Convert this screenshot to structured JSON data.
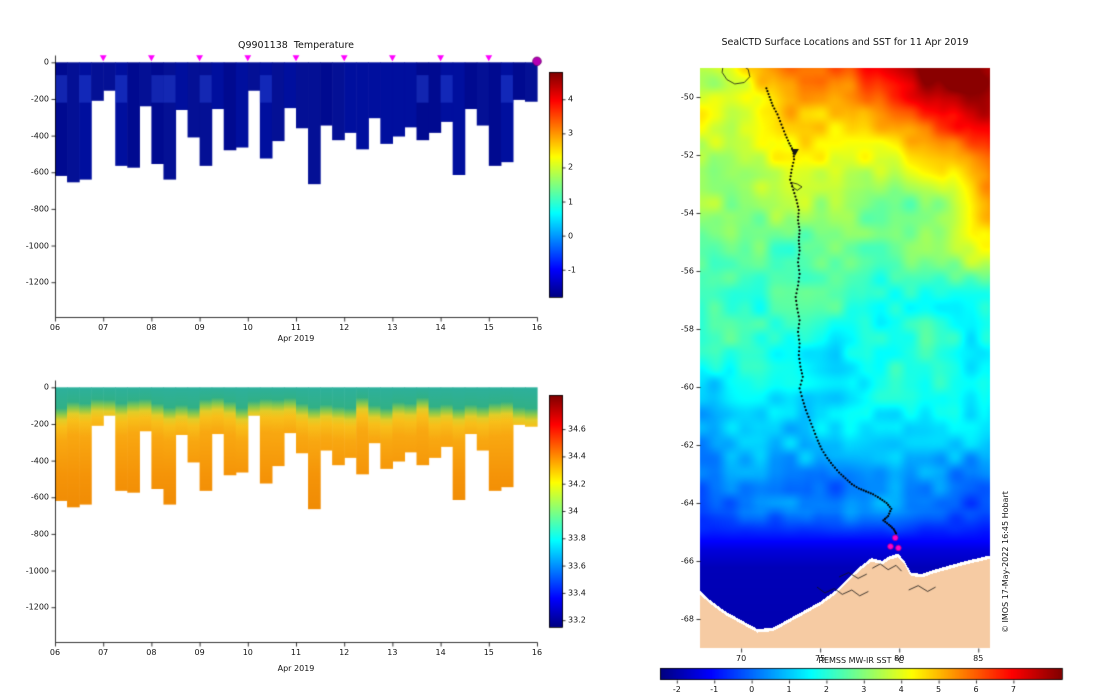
{
  "chart_data": [
    {
      "id": "temperature_profile",
      "type": "heatmap",
      "title": "Q9901138  Temperature",
      "xlabel": "Apr 2019",
      "x_tick_labels": [
        "06",
        "07",
        "08",
        "09",
        "10",
        "11",
        "12",
        "13",
        "14",
        "15",
        "16"
      ],
      "x_range_days": [
        6,
        16
      ],
      "y_tick_values": [
        0,
        -200,
        -400,
        -600,
        -800,
        -1000,
        -1200
      ],
      "y_range_m": [
        -1390,
        40
      ],
      "column_start_day": 6,
      "column_width_days": 0.25,
      "column_max_depths_m": [
        -620,
        -655,
        -640,
        -210,
        -155,
        -565,
        -575,
        -240,
        -555,
        -640,
        -260,
        -410,
        -565,
        -255,
        -480,
        -465,
        -155,
        -525,
        -430,
        -250,
        -360,
        -665,
        -345,
        -425,
        -385,
        -475,
        -305,
        -445,
        -405,
        -355,
        -425,
        -385,
        -325,
        -615,
        -255,
        -345,
        -565,
        -545,
        -205,
        -215
      ],
      "body_temperature_c": -0.9,
      "body_colors": [
        "#000a90",
        "#000f9e",
        "#041095"
      ],
      "surface_patch_color": "rgba(40,70,215,0.45)",
      "surface_marker_days": [
        7,
        8,
        9,
        10,
        11,
        12,
        13,
        14,
        15
      ],
      "surface_marker_color": "#ff00ff",
      "end_marker": {
        "day": 16,
        "color": "#b400b4"
      },
      "colorbar": {
        "ticks": [
          4,
          3,
          2,
          1,
          0,
          -1
        ],
        "vmin": -1.8,
        "vmax": 4.8,
        "colormap": "jet"
      }
    },
    {
      "id": "salinity_profile",
      "type": "heatmap",
      "title": "",
      "xlabel": "Apr 2019",
      "x_tick_labels": [
        "06",
        "07",
        "08",
        "09",
        "10",
        "11",
        "12",
        "13",
        "14",
        "15",
        "16"
      ],
      "x_range_days": [
        6,
        16
      ],
      "y_tick_values": [
        0,
        -200,
        -400,
        -600,
        -800,
        -1000,
        -1200
      ],
      "y_range_m": [
        -1390,
        40
      ],
      "surface_layer_approx": 34.0,
      "deep_layer_approx": 34.5,
      "gradient_stops_m": [
        [
          0,
          "#2db19d"
        ],
        [
          85,
          "#31b087"
        ],
        [
          120,
          "#8bc94b"
        ],
        [
          150,
          "#e2cd28"
        ],
        [
          185,
          "#f8c01a"
        ],
        [
          265,
          "#f9a811"
        ],
        [
          480,
          "#f59408"
        ],
        [
          700,
          "#ef8a04"
        ]
      ],
      "colorbar": {
        "ticks": [
          34.6,
          34.4,
          34.2,
          34,
          33.8,
          33.6,
          33.4,
          33.2
        ],
        "vmin": 33.15,
        "vmax": 34.85,
        "colormap": "jet"
      }
    },
    {
      "id": "sst_map",
      "type": "heatmap",
      "title": "SealCTD Surface Locations and SST for 11 Apr 2019",
      "credit": "© IMOS 17-May-2022 16:45 Hobart",
      "x_tick_values": [
        70,
        75,
        80,
        85
      ],
      "y_tick_values": [
        -50,
        -52,
        -54,
        -56,
        -58,
        -60,
        -62,
        -64,
        -66,
        -68
      ],
      "lon_range": [
        67.4,
        85.75
      ],
      "lat_range": [
        -69,
        -49
      ],
      "land_color": "#f6cba3",
      "track_color": "#000000",
      "colorbar": {
        "label": "REMSS MW-IR SST °C",
        "ticks": [
          -2,
          -1,
          0,
          1,
          2,
          3,
          4,
          5,
          6,
          7
        ],
        "vmin": -2.45,
        "vmax": 8.3,
        "colormap": "jet"
      },
      "sst_lat_profile": [
        [
          -69,
          -1.85
        ],
        [
          -66.2,
          -1.75
        ],
        [
          -65.6,
          -1.4
        ],
        [
          -64.9,
          -0.6
        ],
        [
          -64.3,
          0.05
        ],
        [
          -63.5,
          0.3
        ],
        [
          -62.5,
          0.55
        ],
        [
          -61.5,
          0.8
        ],
        [
          -60.5,
          1.05
        ],
        [
          -59.5,
          1.3
        ],
        [
          -58.5,
          1.6
        ],
        [
          -57.5,
          1.9
        ],
        [
          -56.5,
          2.2
        ],
        [
          -55,
          2.6
        ],
        [
          -53.5,
          3.0
        ],
        [
          -52.5,
          3.3
        ],
        [
          -51.5,
          3.8
        ],
        [
          -50.5,
          4.2
        ],
        [
          -49.6,
          4.6
        ],
        [
          -49,
          5.0
        ]
      ],
      "sst_warm_features": [
        {
          "lon": 83.5,
          "lat": -49.2,
          "slon": 4.5,
          "slat": 2.0,
          "amp": 3.0
        },
        {
          "lon": 86.5,
          "lat": -54.0,
          "slon": 2.4,
          "slat": 1.6,
          "amp": 1.7
        },
        {
          "lon": 85.9,
          "lat": -51.8,
          "slon": 2.2,
          "slat": 1.4,
          "amp": 1.4
        },
        {
          "lon": 67.5,
          "lat": -49.4,
          "slon": 3.2,
          "slat": 1.8,
          "amp": -1.2
        }
      ],
      "coastline": [
        [
          67.4,
          -67.1
        ],
        [
          68,
          -67.4
        ],
        [
          69,
          -67.8
        ],
        [
          70,
          -68.1
        ],
        [
          71,
          -68.4
        ],
        [
          72,
          -68.35
        ],
        [
          73,
          -68.05
        ],
        [
          74,
          -67.75
        ],
        [
          75,
          -67.45
        ],
        [
          76,
          -67.05
        ],
        [
          76.8,
          -66.6
        ],
        [
          77.5,
          -66.25
        ],
        [
          78.2,
          -65.95
        ],
        [
          78.9,
          -66.05
        ],
        [
          79.3,
          -65.9
        ],
        [
          79.9,
          -65.8
        ],
        [
          80.3,
          -66.05
        ],
        [
          80.7,
          -66.45
        ],
        [
          81.4,
          -66.5
        ],
        [
          82.2,
          -66.35
        ],
        [
          83.2,
          -66.2
        ],
        [
          84.2,
          -66.05
        ],
        [
          85,
          -65.95
        ],
        [
          85.8,
          -65.85
        ]
      ],
      "islands": [
        [
          [
            68.85,
            -48.95
          ],
          [
            69.3,
            -48.8
          ],
          [
            69.9,
            -48.85
          ],
          [
            70.45,
            -49.05
          ],
          [
            70.55,
            -49.3
          ],
          [
            70.2,
            -49.5
          ],
          [
            69.6,
            -49.55
          ],
          [
            69.1,
            -49.4
          ],
          [
            68.8,
            -49.15
          ],
          [
            68.85,
            -48.95
          ]
        ],
        [
          [
            73.2,
            -52.95
          ],
          [
            73.55,
            -53.0
          ],
          [
            73.85,
            -53.1
          ],
          [
            73.55,
            -53.22
          ],
          [
            73.25,
            -53.1
          ],
          [
            73.2,
            -52.95
          ]
        ]
      ],
      "ice_edges": [
        [
          [
            74.8,
            -66.9
          ],
          [
            75.3,
            -67.1
          ],
          [
            75.9,
            -66.95
          ],
          [
            76.4,
            -67.15
          ],
          [
            77.0,
            -67.0
          ],
          [
            77.5,
            -67.2
          ],
          [
            78.05,
            -67.05
          ]
        ],
        [
          [
            78.3,
            -66.25
          ],
          [
            78.8,
            -66.1
          ],
          [
            79.3,
            -66.3
          ],
          [
            79.8,
            -66.15
          ],
          [
            80.15,
            -66.35
          ]
        ],
        [
          [
            76.2,
            -66.55
          ],
          [
            76.8,
            -66.4
          ],
          [
            77.4,
            -66.6
          ],
          [
            77.95,
            -66.45
          ]
        ],
        [
          [
            80.6,
            -67.0
          ],
          [
            81.2,
            -66.85
          ],
          [
            81.8,
            -67.05
          ],
          [
            82.3,
            -66.9
          ]
        ]
      ],
      "deployment_marker": {
        "lon": 73.4,
        "lat": -51.9,
        "color": "#151515"
      },
      "track": [
        [
          71.6,
          -49.7
        ],
        [
          71.8,
          -50.0
        ],
        [
          72.0,
          -50.3
        ],
        [
          72.3,
          -50.6
        ],
        [
          72.55,
          -50.95
        ],
        [
          72.8,
          -51.3
        ],
        [
          73.05,
          -51.6
        ],
        [
          73.3,
          -51.85
        ],
        [
          73.35,
          -52.15
        ],
        [
          73.2,
          -52.5
        ],
        [
          73.1,
          -52.85
        ],
        [
          73.3,
          -53.2
        ],
        [
          73.5,
          -53.55
        ],
        [
          73.65,
          -53.9
        ],
        [
          73.6,
          -54.25
        ],
        [
          73.7,
          -54.6
        ],
        [
          73.65,
          -54.95
        ],
        [
          73.7,
          -55.3
        ],
        [
          73.6,
          -55.7
        ],
        [
          73.7,
          -56.1
        ],
        [
          73.6,
          -56.5
        ],
        [
          73.45,
          -56.9
        ],
        [
          73.55,
          -57.3
        ],
        [
          73.7,
          -57.7
        ],
        [
          73.6,
          -58.1
        ],
        [
          73.7,
          -58.5
        ],
        [
          73.65,
          -58.9
        ],
        [
          73.75,
          -59.3
        ],
        [
          73.9,
          -59.65
        ],
        [
          73.7,
          -60.05
        ],
        [
          73.9,
          -60.45
        ],
        [
          74.1,
          -60.8
        ],
        [
          74.35,
          -61.15
        ],
        [
          74.6,
          -61.5
        ],
        [
          74.85,
          -61.85
        ],
        [
          75.1,
          -62.15
        ],
        [
          75.45,
          -62.45
        ],
        [
          75.8,
          -62.7
        ],
        [
          76.2,
          -62.95
        ],
        [
          76.6,
          -63.15
        ],
        [
          77.0,
          -63.35
        ],
        [
          77.45,
          -63.5
        ],
        [
          77.9,
          -63.6
        ],
        [
          78.35,
          -63.7
        ],
        [
          78.8,
          -63.85
        ],
        [
          79.2,
          -64.0
        ],
        [
          79.5,
          -64.2
        ],
        [
          79.3,
          -64.45
        ],
        [
          79.0,
          -64.6
        ],
        [
          79.35,
          -64.75
        ],
        [
          79.65,
          -64.9
        ],
        [
          79.8,
          -65.05
        ]
      ],
      "surface_points": [
        [
          79.75,
          -65.2
        ],
        [
          79.45,
          -65.5
        ],
        [
          79.95,
          -65.55
        ]
      ],
      "surface_point_color": "#ff00cc"
    }
  ]
}
